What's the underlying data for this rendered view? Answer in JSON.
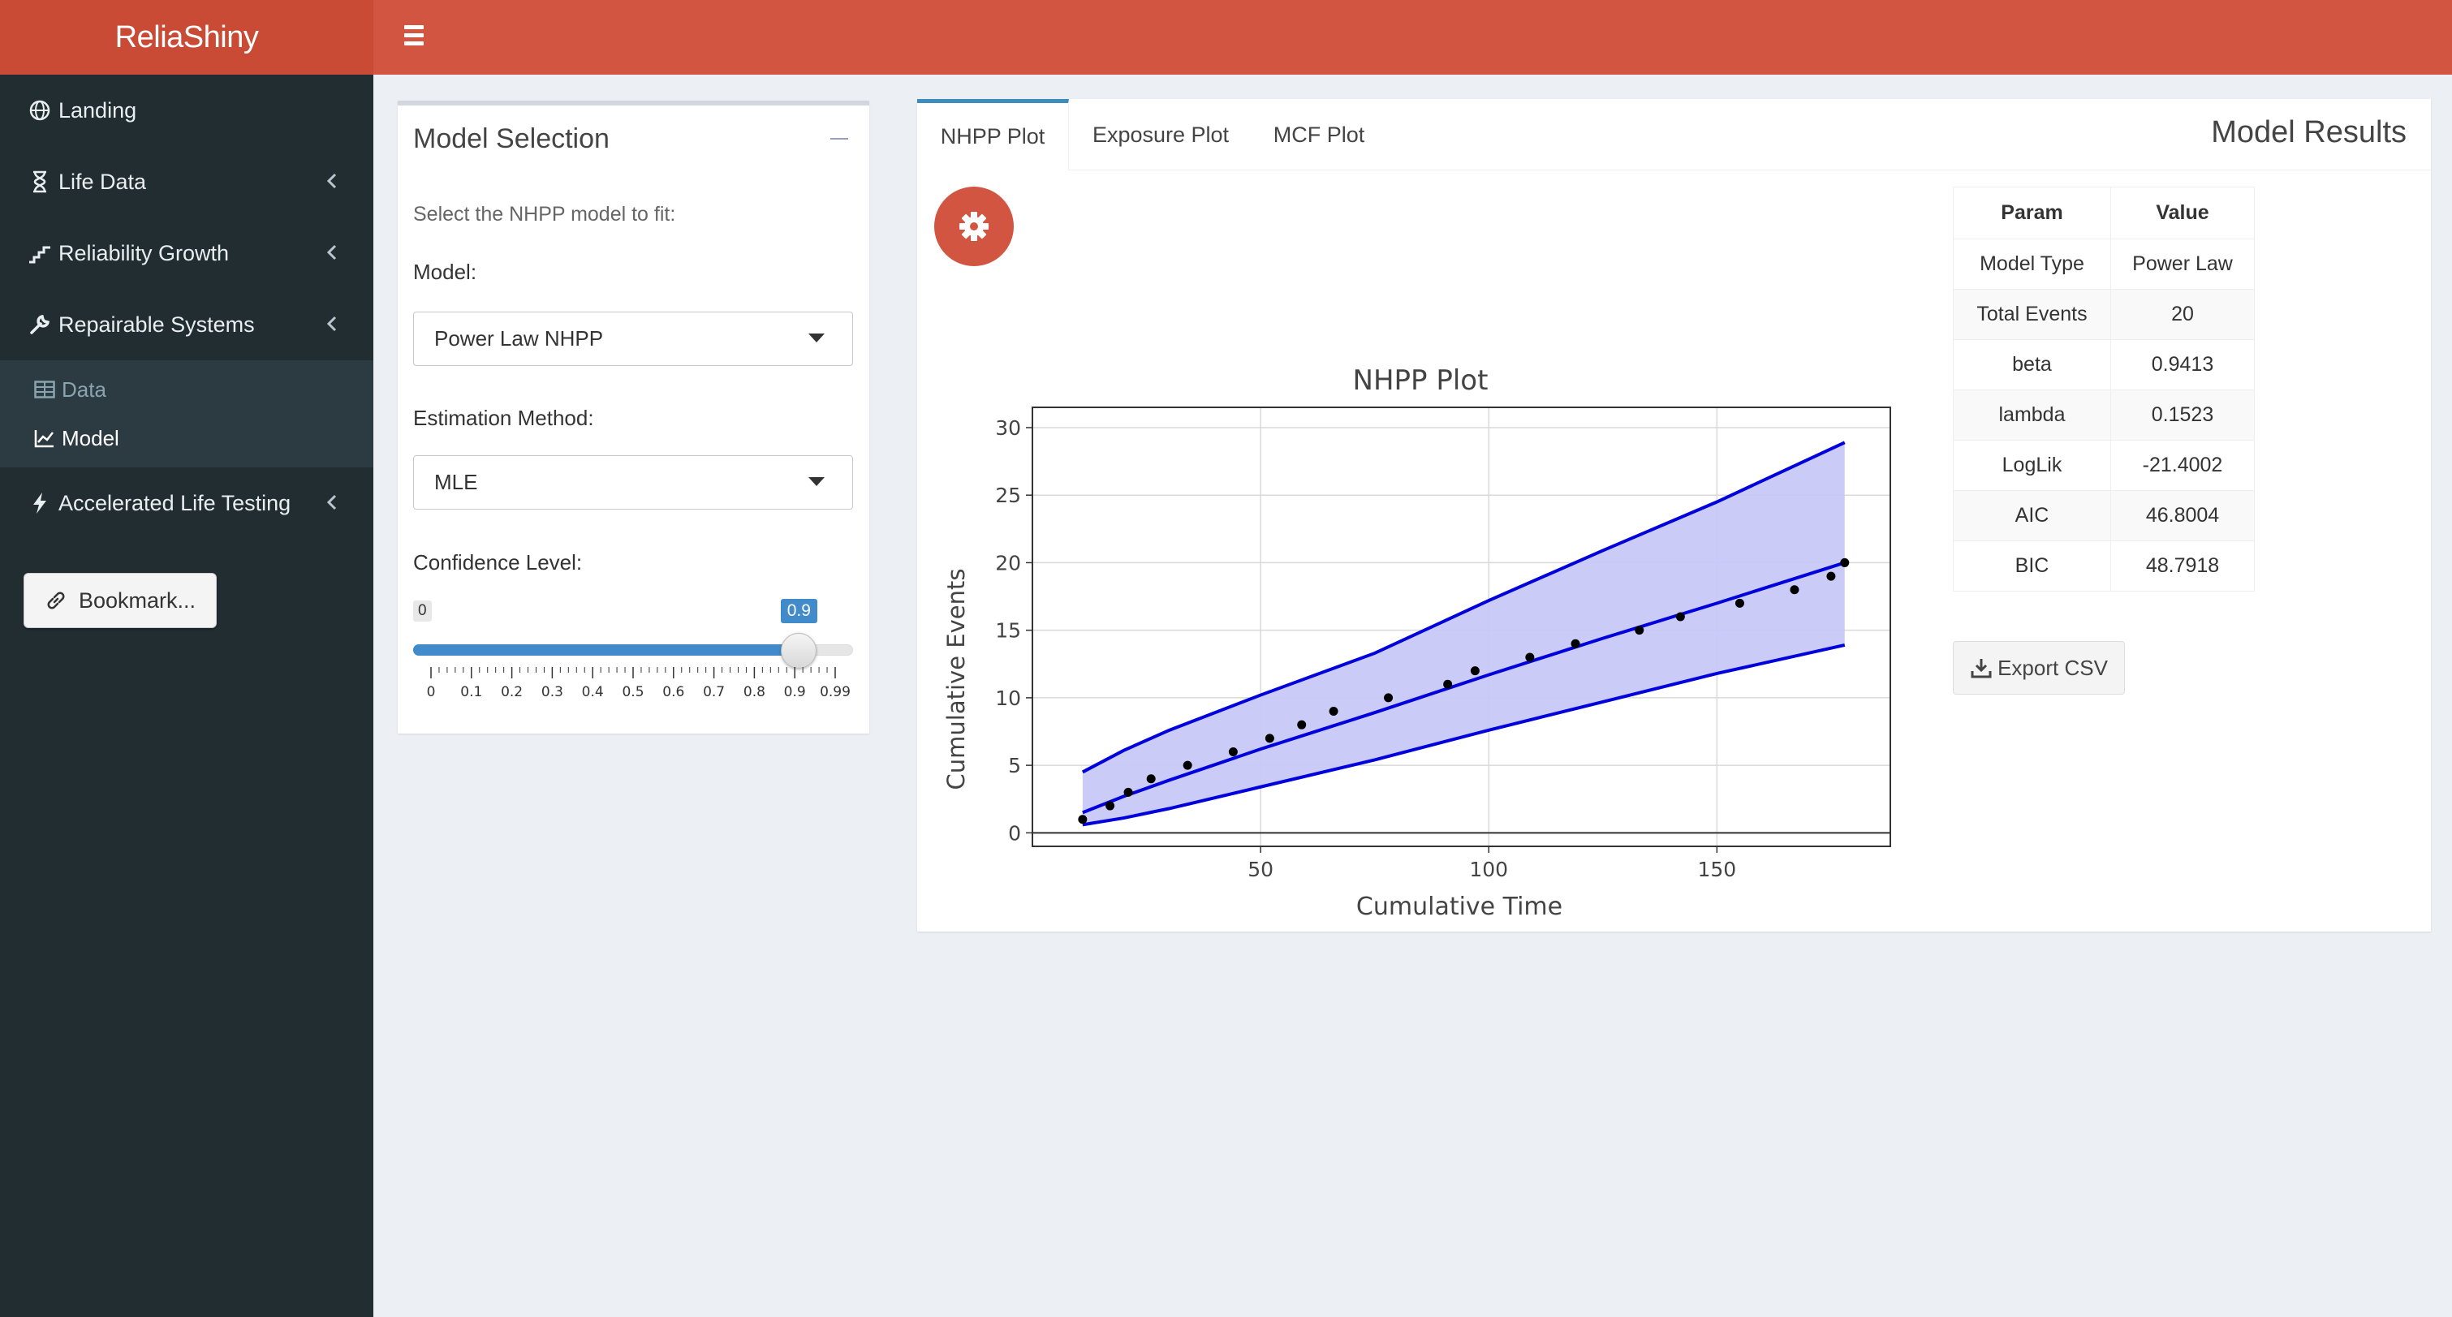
{
  "app": {
    "title": "ReliaShiny"
  },
  "sidebar": {
    "items": [
      {
        "label": "Landing",
        "icon": "globe-icon"
      },
      {
        "label": "Life Data",
        "icon": "hourglass-icon"
      },
      {
        "label": "Reliability Growth",
        "icon": "steps-chart-icon"
      },
      {
        "label": "Repairable Systems",
        "icon": "wrench-icon"
      }
    ],
    "subitems": [
      {
        "label": "Data",
        "icon": "table-icon"
      },
      {
        "label": "Model",
        "icon": "line-chart-icon"
      }
    ],
    "after": {
      "label": "Accelerated Life Testing",
      "icon": "bolt-icon"
    },
    "bookmark_label": "Bookmark..."
  },
  "model_selection": {
    "title": "Model Selection",
    "help": "Select the NHPP model to fit:",
    "model_label": "Model:",
    "model_value": "Power Law NHPP",
    "method_label": "Estimation Method:",
    "method_value": "MLE",
    "confidence_label": "Confidence Level:",
    "slider": {
      "min_label": "0",
      "value_label": "0.9",
      "value": 0.9,
      "min": 0,
      "max": 0.99,
      "tick_labels": [
        "0",
        "0.1",
        "0.2",
        "0.3",
        "0.4",
        "0.5",
        "0.6",
        "0.7",
        "0.8",
        "0.9",
        "0.99"
      ]
    }
  },
  "results": {
    "tabs": [
      "NHPP Plot",
      "Exposure Plot",
      "MCF Plot"
    ],
    "active_tab": "NHPP Plot",
    "title": "Model Results",
    "table": {
      "headers": [
        "Param",
        "Value"
      ],
      "rows": [
        [
          "Model Type",
          "Power Law"
        ],
        [
          "Total Events",
          "20"
        ],
        [
          "beta",
          "0.9413"
        ],
        [
          "lambda",
          "0.1523"
        ],
        [
          "LogLik",
          "-21.4002"
        ],
        [
          "AIC",
          "46.8004"
        ],
        [
          "BIC",
          "48.7918"
        ]
      ]
    },
    "export_label": "Export CSV"
  },
  "chart_data": {
    "type": "line",
    "title": "NHPP Plot",
    "xlabel": "Cumulative Time",
    "ylabel": "Cumulative Events",
    "xlim": [
      0,
      188
    ],
    "ylim": [
      -1,
      31.5
    ],
    "xticks": [
      50,
      100,
      150
    ],
    "yticks": [
      0,
      5,
      10,
      15,
      20,
      25,
      30
    ],
    "grid": true,
    "colors": {
      "fit": "#0000dd",
      "band": "#c8c8f8",
      "points": "#000000"
    },
    "points": {
      "x": [
        11,
        17,
        21,
        26,
        34,
        44,
        52,
        59,
        66,
        78,
        91,
        97,
        109,
        119,
        133,
        142,
        155,
        167,
        175,
        178
      ],
      "y": [
        1,
        2,
        3,
        4,
        5,
        6,
        7,
        8,
        9,
        10,
        11,
        12,
        13,
        14,
        15,
        16,
        17,
        18,
        19,
        20
      ]
    },
    "series": [
      {
        "x": [
          11,
          20,
          30,
          50,
          75,
          100,
          125,
          150,
          178
        ],
        "y": [
          1.5,
          2.7,
          3.9,
          6.2,
          8.9,
          11.7,
          14.4,
          17.0,
          20.0
        ]
      },
      {
        "x": [
          11,
          20,
          30,
          50,
          75,
          100,
          125,
          150,
          178
        ],
        "y": [
          4.5,
          6.1,
          7.6,
          10.2,
          13.3,
          17.2,
          20.9,
          24.5,
          28.9
        ]
      },
      {
        "x": [
          11,
          20,
          30,
          50,
          75,
          100,
          125,
          150,
          178
        ],
        "y": [
          0.6,
          1.1,
          1.8,
          3.4,
          5.4,
          7.6,
          9.7,
          11.8,
          13.9
        ]
      }
    ]
  }
}
